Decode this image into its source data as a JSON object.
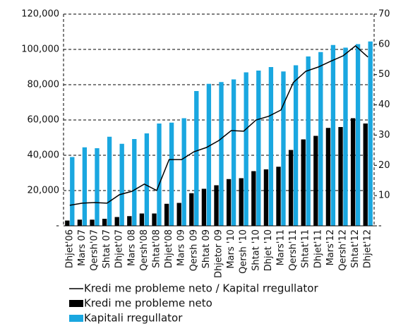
{
  "chart_data": {
    "type": "bar",
    "categories": [
      "Dhjet'06",
      "Mars 07",
      "Qersh'07",
      "Shtat 07",
      "Dhjet'07",
      "Mars 08",
      "Qersh'08",
      "Shtat'08",
      "Dhjet'08",
      "Mars 09",
      "Qersh 09",
      "Shtat 09",
      "Dhjetor 09",
      "Mars '10",
      "Qersh '10",
      "Shtat '10",
      "Dhjet '10",
      "Mars'11",
      "Qersh'11",
      "Shtat'11",
      "Dhjet'11",
      "Mars'12",
      "Qersh'12",
      "Shtat'12",
      "Dhjet'12"
    ],
    "series": [
      {
        "name": "Kredi me probleme neto / Kapital rregullator",
        "color": "#000000",
        "type": "line",
        "axis": "y2",
        "values": [
          6.8,
          7.5,
          7.7,
          7.5,
          10.3,
          11.4,
          13.8,
          11.7,
          21.9,
          21.9,
          24.5,
          25.9,
          28.2,
          31.5,
          31.3,
          35,
          36.2,
          38.3,
          47.4,
          51.1,
          52.5,
          54.4,
          56.2,
          59.5,
          55.8
        ]
      },
      {
        "name": "Kredi me probleme neto",
        "color": "#000000",
        "type": "bar",
        "values": [
          3000,
          3500,
          3500,
          4000,
          5000,
          5500,
          7000,
          7000,
          12500,
          13000,
          18500,
          21000,
          23000,
          26500,
          27000,
          31000,
          32000,
          33500,
          43000,
          49000,
          51000,
          55500,
          56000,
          61000,
          58000
        ]
      },
      {
        "name": "Kapitali rregullator",
        "color": "#1aa7e0",
        "type": "bar",
        "values": [
          39000,
          44500,
          44000,
          50500,
          46500,
          49200,
          52400,
          58000,
          58500,
          61000,
          76400,
          80500,
          81500,
          83000,
          87000,
          88000,
          90000,
          87500,
          91000,
          96000,
          98500,
          102500,
          101000,
          103000,
          104500
        ]
      }
    ],
    "ylim": [
      0,
      120000
    ],
    "yticks": [
      {
        "value": 0,
        "label": "-"
      },
      {
        "value": 20000,
        "label": "20,000"
      },
      {
        "value": 40000,
        "label": "40,000"
      },
      {
        "value": 60000,
        "label": "60,000"
      },
      {
        "value": 80000,
        "label": "80,000"
      },
      {
        "value": 100000,
        "label": "100,000"
      },
      {
        "value": 120000,
        "label": "120,000"
      }
    ],
    "y2lim": [
      0,
      70
    ],
    "y2ticks": [
      {
        "value": 0,
        "label": "-"
      },
      10,
      20,
      30,
      40,
      50,
      60,
      70
    ],
    "grid": true
  }
}
